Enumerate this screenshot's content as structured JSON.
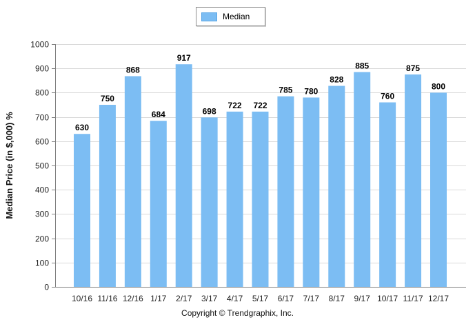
{
  "legend": {
    "label": "Median"
  },
  "copyright": "Copyright © Trendgraphix, Inc.",
  "colors": {
    "bar": "#7cbdf3",
    "grid": "#d9d9d9"
  },
  "chart_data": {
    "type": "bar",
    "title": "",
    "xlabel": "",
    "ylabel": "Median Price (in $,000) %",
    "ylim": [
      0,
      1000
    ],
    "yticks": [
      0,
      100,
      200,
      300,
      400,
      500,
      600,
      700,
      800,
      900,
      1000
    ],
    "grid": true,
    "legend_position": "top-center",
    "categories": [
      "10/16",
      "11/16",
      "12/16",
      "1/17",
      "2/17",
      "3/17",
      "4/17",
      "5/17",
      "6/17",
      "7/17",
      "8/17",
      "9/17",
      "10/17",
      "11/17",
      "12/17"
    ],
    "series": [
      {
        "name": "Median",
        "values": [
          630,
          750,
          868,
          684,
          917,
          698,
          722,
          722,
          785,
          780,
          828,
          885,
          760,
          875,
          800
        ]
      }
    ]
  }
}
